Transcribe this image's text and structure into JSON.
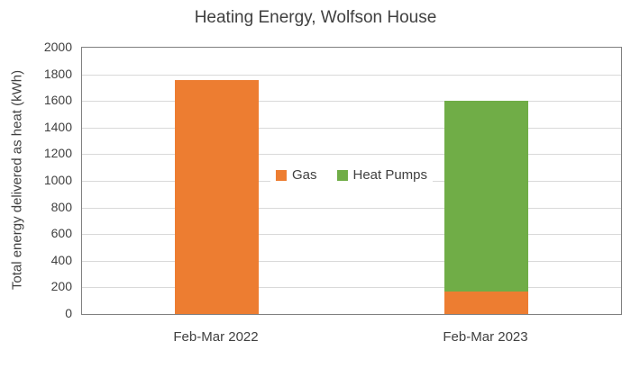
{
  "chart_data": {
    "type": "bar",
    "stacked": true,
    "title": "Heating Energy, Wolfson House",
    "xlabel": "",
    "ylabel": "Total energy delivered as heat (kWh)",
    "categories": [
      "Feb-Mar 2022",
      "Feb-Mar 2023"
    ],
    "series": [
      {
        "name": "Gas",
        "color": "#ED7D31",
        "values": [
          1760,
          170
        ]
      },
      {
        "name": "Heat Pumps",
        "color": "#70AD47",
        "values": [
          0,
          1430
        ]
      }
    ],
    "ylim": [
      0,
      2000
    ],
    "ytick_step": 200,
    "grid": true,
    "legend_position": "center-inside"
  },
  "colors": {
    "text": "#404040",
    "gridline": "#D9D9D9",
    "plot_border": "#808080",
    "background": "#FFFFFF"
  }
}
